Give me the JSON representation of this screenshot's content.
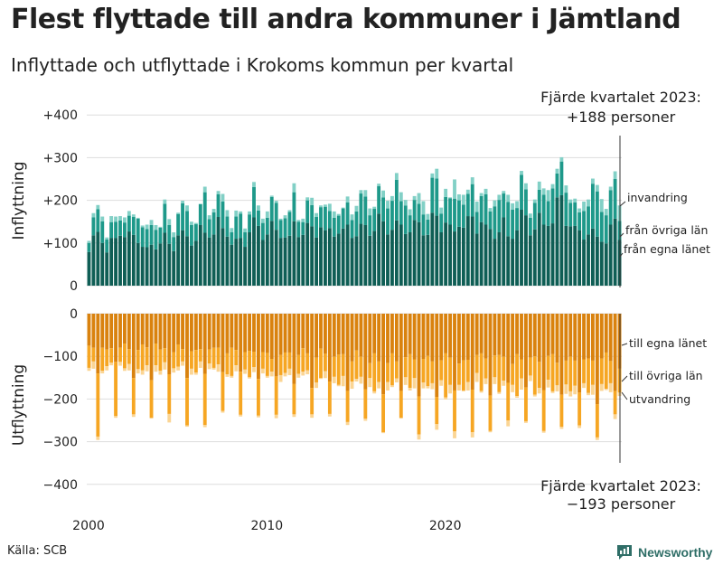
{
  "title": "Flest flyttade till andra kommuner i Jämtland",
  "subtitle": "Inflyttade och utflyttade i Krokoms kommun per kvartal",
  "source": "Källa: SCB",
  "brand": "Newsworthy",
  "colors": {
    "in_local": "#0f5e55",
    "in_county": "#1e998a",
    "in_immigration": "#82d0c6",
    "out_local": "#d9820e",
    "out_county": "#f6a623",
    "out_emigration": "#fbd594",
    "brand": "#2f6e67",
    "grid": "#dddddd"
  },
  "chart_data": [
    {
      "type": "bar",
      "stacked": true,
      "title": "Inflyttning",
      "ylabel": "Inflyttning",
      "ylim": [
        0,
        420
      ],
      "yticks": [
        "0",
        "+100",
        "+200",
        "+300",
        "+400"
      ],
      "ytick_values": [
        0,
        100,
        200,
        300,
        400
      ],
      "x_start": 2000.0,
      "x_step": 0.25,
      "xticks": [
        "2000",
        "2010",
        "2020"
      ],
      "annotation": {
        "line1": "Fjärde kvartalet 2023:",
        "line2": "+188 personer"
      },
      "series": [
        {
          "name": "från egna länet",
          "label": "från egna länet",
          "values": [
            79,
            118,
            126,
            100,
            78,
            112,
            112,
            117,
            114,
            127,
            119,
            100,
            91,
            90,
            96,
            85,
            99,
            124,
            98,
            81,
            118,
            130,
            116,
            94,
            105,
            142,
            124,
            113,
            120,
            161,
            135,
            115,
            96,
            110,
            112,
            91,
            125,
            160,
            140,
            107,
            120,
            152,
            131,
            112,
            113,
            117,
            151,
            114,
            119,
            147,
            139,
            113,
            137,
            130,
            135,
            115,
            122,
            134,
            143,
            112,
            116,
            145,
            142,
            117,
            128,
            169,
            151,
            120,
            131,
            153,
            143,
            121,
            125,
            154,
            149,
            118,
            119,
            171,
            164,
            125,
            148,
            143,
            127,
            138,
            136,
            163,
            162,
            122,
            149,
            143,
            133,
            110,
            125,
            160,
            116,
            110,
            130,
            178,
            165,
            118,
            132,
            171,
            143,
            140,
            146,
            207,
            212,
            140,
            139,
            140,
            130,
            108,
            120,
            134,
            115,
            103,
            99,
            143,
            157,
            107
          ]
        },
        {
          "name": "från övriga län",
          "label": "från övriga län",
          "values": [
            21,
            42,
            53,
            51,
            30,
            37,
            38,
            36,
            34,
            37,
            42,
            57,
            46,
            43,
            46,
            46,
            37,
            68,
            44,
            33,
            50,
            63,
            59,
            48,
            39,
            49,
            95,
            43,
            52,
            53,
            62,
            47,
            29,
            52,
            57,
            34,
            42,
            71,
            36,
            40,
            39,
            56,
            63,
            42,
            45,
            56,
            68,
            36,
            30,
            53,
            50,
            48,
            47,
            55,
            40,
            44,
            42,
            47,
            52,
            42,
            58,
            71,
            67,
            48,
            52,
            64,
            56,
            61,
            68,
            95,
            55,
            67,
            40,
            47,
            43,
            49,
            36,
            82,
            87,
            44,
            60,
            62,
            77,
            62,
            54,
            52,
            76,
            51,
            61,
            71,
            41,
            76,
            76,
            56,
            80,
            68,
            52,
            82,
            61,
            41,
            62,
            54,
            70,
            58,
            82,
            56,
            79,
            78,
            55,
            55,
            42,
            67,
            66,
            105,
            106,
            70,
            66,
            81,
            93,
            45
          ]
        },
        {
          "name": "invandring",
          "label": "invandring",
          "values": [
            5,
            10,
            10,
            11,
            5,
            14,
            12,
            10,
            12,
            11,
            6,
            2,
            4,
            10,
            12,
            11,
            2,
            10,
            14,
            11,
            3,
            6,
            13,
            8,
            3,
            1,
            13,
            9,
            8,
            8,
            18,
            15,
            10,
            14,
            5,
            9,
            7,
            12,
            12,
            10,
            15,
            3,
            5,
            3,
            7,
            4,
            21,
            4,
            8,
            7,
            17,
            9,
            4,
            5,
            17,
            15,
            4,
            2,
            14,
            13,
            13,
            8,
            15,
            16,
            5,
            6,
            16,
            18,
            11,
            16,
            21,
            13,
            14,
            9,
            25,
            31,
            13,
            10,
            23,
            14,
            19,
            2,
            45,
            14,
            23,
            10,
            16,
            24,
            7,
            13,
            8,
            14,
            12,
            6,
            17,
            15,
            16,
            9,
            14,
            10,
            8,
            19,
            15,
            26,
            10,
            11,
            10,
            17,
            8,
            9,
            9,
            22,
            16,
            12,
            15,
            30,
            15,
            8,
            18,
            36
          ]
        }
      ]
    },
    {
      "type": "bar",
      "stacked": true,
      "title": "Utflyttning",
      "ylabel": "Utflyttning",
      "ylim": [
        -420,
        0
      ],
      "yticks": [
        "0",
        "−100",
        "−200",
        "−300",
        "−400"
      ],
      "ytick_values": [
        0,
        -100,
        -200,
        -300,
        -400
      ],
      "x_start": 2000.0,
      "x_step": 0.25,
      "xticks": [
        "2000",
        "2010",
        "2020"
      ],
      "annotation": {
        "line1": "Fjärde kvartalet 2023:",
        "line2": "−193 personer"
      },
      "series": [
        {
          "name": "till egna länet",
          "label": "till egna länet",
          "values": [
            -75,
            -80,
            -140,
            -80,
            -84,
            -81,
            -113,
            -80,
            -70,
            -83,
            -151,
            -85,
            -72,
            -79,
            -156,
            -70,
            -84,
            -81,
            -142,
            -90,
            -72,
            -83,
            -151,
            -88,
            -85,
            -83,
            -141,
            -84,
            -80,
            -80,
            -137,
            -93,
            -80,
            -85,
            -136,
            -90,
            -87,
            -89,
            -153,
            -90,
            -92,
            -106,
            -147,
            -97,
            -91,
            -91,
            -165,
            -97,
            -81,
            -93,
            -174,
            -103,
            -82,
            -94,
            -159,
            -101,
            -96,
            -95,
            -181,
            -112,
            -86,
            -101,
            -177,
            -116,
            -93,
            -112,
            -189,
            -116,
            -93,
            -112,
            -181,
            -102,
            -95,
            -107,
            -194,
            -106,
            -99,
            -112,
            -195,
            -109,
            -93,
            -103,
            -180,
            -117,
            -109,
            -108,
            -178,
            -97,
            -93,
            -105,
            -192,
            -98,
            -97,
            -101,
            -162,
            -118,
            -95,
            -107,
            -173,
            -103,
            -100,
            -113,
            -179,
            -99,
            -95,
            -115,
            -190,
            -110,
            -101,
            -110,
            -185,
            -107,
            -105,
            -110,
            -212,
            -105,
            -91,
            -111,
            -181,
            -129
          ]
        },
        {
          "name": "till övriga län",
          "label": "till övriga län",
          "values": [
            -52,
            -32,
            -148,
            -54,
            -39,
            -34,
            -127,
            -33,
            -58,
            -35,
            -85,
            -45,
            -61,
            -42,
            -88,
            -51,
            -50,
            -33,
            -93,
            -38,
            -52,
            -29,
            -111,
            -41,
            -53,
            -29,
            -120,
            -33,
            -47,
            -39,
            -91,
            -49,
            -66,
            -36,
            -101,
            -41,
            -62,
            -36,
            -86,
            -39,
            -54,
            -30,
            -90,
            -47,
            -48,
            -38,
            -71,
            -44,
            -55,
            -40,
            -62,
            -58,
            -69,
            -41,
            -76,
            -47,
            -71,
            -51,
            -73,
            -47,
            -67,
            -47,
            -69,
            -35,
            -89,
            -48,
            -89,
            -44,
            -75,
            -40,
            -63,
            -47,
            -79,
            -44,
            -89,
            -55,
            -71,
            -51,
            -64,
            -47,
            -103,
            -64,
            -96,
            -50,
            -71,
            -52,
            -100,
            -42,
            -88,
            -47,
            -83,
            -51,
            -87,
            -56,
            -88,
            -49,
            -98,
            -45,
            -79,
            -42,
            -90,
            -61,
            -96,
            -56,
            -87,
            -53,
            -75,
            -56,
            -81,
            -59,
            -77,
            -56,
            -81,
            -57,
            -78,
            -60,
            -85,
            -52,
            -55,
            -56
          ]
        },
        {
          "name": "utvandring",
          "label": "utvandring",
          "values": [
            -7,
            -17,
            -8,
            -6,
            -10,
            -6,
            -4,
            -9,
            -6,
            -15,
            -6,
            -10,
            -10,
            -14,
            -2,
            -15,
            -9,
            -17,
            -20,
            -10,
            -9,
            -10,
            -3,
            -14,
            -5,
            -15,
            -5,
            -13,
            -4,
            -17,
            -4,
            -6,
            -4,
            -14,
            -4,
            -10,
            -3,
            -12,
            -4,
            -11,
            -4,
            -11,
            -8,
            -16,
            -8,
            -15,
            -6,
            -9,
            -9,
            -9,
            -8,
            -13,
            -2,
            -16,
            -6,
            -15,
            -3,
            -24,
            -7,
            -17,
            -6,
            -16,
            -5,
            -21,
            -5,
            -15,
            -2,
            -20,
            -4,
            -9,
            -2,
            -18,
            -6,
            -24,
            -12,
            -14,
            -5,
            -14,
            -13,
            -13,
            -5,
            -20,
            -16,
            -13,
            -2,
            -20,
            -12,
            -21,
            -4,
            -13,
            -3,
            -16,
            -4,
            -12,
            -14,
            -17,
            -4,
            -26,
            -4,
            -13,
            -4,
            -13,
            -4,
            -18,
            -4,
            -14,
            -5,
            -22,
            -12,
            -20,
            -6,
            -11,
            -5,
            -23,
            -6,
            -16,
            -3,
            -21,
            -11,
            -8
          ]
        }
      ]
    }
  ]
}
